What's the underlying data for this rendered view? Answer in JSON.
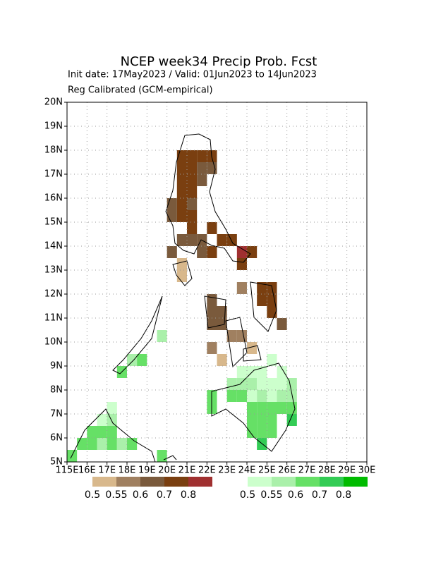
{
  "chart_data": {
    "type": "grid-map",
    "title": "NCEP week34 Precip Prob. Fcst",
    "subtitle": "Init date: 17May2023 / Valid: 01Jun2023 to 14Jun2023",
    "note": "Reg Calibrated (GCM-empirical)",
    "xlim": [
      115,
      130
    ],
    "ylim": [
      5,
      20
    ],
    "xticks": [
      {
        "value": 115,
        "label": "115E"
      },
      {
        "value": 116,
        "label": "16E"
      },
      {
        "value": 117,
        "label": "17E"
      },
      {
        "value": 118,
        "label": "18E"
      },
      {
        "value": 119,
        "label": "19E"
      },
      {
        "value": 120,
        "label": "20E"
      },
      {
        "value": 121,
        "label": "21E"
      },
      {
        "value": 122,
        "label": "22E"
      },
      {
        "value": 123,
        "label": "23E"
      },
      {
        "value": 124,
        "label": "24E"
      },
      {
        "value": 125,
        "label": "25E"
      },
      {
        "value": 126,
        "label": "26E"
      },
      {
        "value": 127,
        "label": "27E"
      },
      {
        "value": 128,
        "label": "28E"
      },
      {
        "value": 129,
        "label": "29E"
      },
      {
        "value": 130,
        "label": "30E"
      }
    ],
    "yticks": [
      {
        "value": 5,
        "label": "5N"
      },
      {
        "value": 6,
        "label": "6N"
      },
      {
        "value": 7,
        "label": "7N"
      },
      {
        "value": 8,
        "label": "8N"
      },
      {
        "value": 9,
        "label": "9N"
      },
      {
        "value": 10,
        "label": "10N"
      },
      {
        "value": 11,
        "label": "11N"
      },
      {
        "value": 12,
        "label": "12N"
      },
      {
        "value": 13,
        "label": "13N"
      },
      {
        "value": 14,
        "label": "14N"
      },
      {
        "value": 15,
        "label": "15N"
      },
      {
        "value": 16,
        "label": "16N"
      },
      {
        "value": 17,
        "label": "17N"
      },
      {
        "value": 18,
        "label": "18N"
      },
      {
        "value": 19,
        "label": "19N"
      },
      {
        "value": 20,
        "label": "20N"
      }
    ],
    "grid": true,
    "cell_size": 0.5,
    "legends": [
      {
        "levels": [
          0.5,
          0.55,
          0.6,
          0.7,
          0.8
        ],
        "colors": [
          "#d8b88c",
          "#a08060",
          "#7a5a3c",
          "#7a3f10",
          "#a03030"
        ]
      },
      {
        "levels": [
          0.5,
          0.55,
          0.6,
          0.7,
          0.8
        ],
        "colors": [
          "#ccffcc",
          "#aaf0aa",
          "#66e066",
          "#33cc55",
          "#00bb00"
        ]
      }
    ],
    "dry_cells": [
      {
        "lon": 120.5,
        "lat": 17.5,
        "p": 0.7
      },
      {
        "lon": 121,
        "lat": 17.5,
        "p": 0.7
      },
      {
        "lon": 121.5,
        "lat": 17.5,
        "p": 0.7
      },
      {
        "lon": 122,
        "lat": 17.5,
        "p": 0.7
      },
      {
        "lon": 120.5,
        "lat": 17,
        "p": 0.7
      },
      {
        "lon": 121,
        "lat": 17,
        "p": 0.7
      },
      {
        "lon": 121.5,
        "lat": 17,
        "p": 0.6
      },
      {
        "lon": 122,
        "lat": 17,
        "p": 0.6
      },
      {
        "lon": 120.5,
        "lat": 16.5,
        "p": 0.7
      },
      {
        "lon": 121,
        "lat": 16.5,
        "p": 0.7
      },
      {
        "lon": 121.5,
        "lat": 16.5,
        "p": 0.6
      },
      {
        "lon": 120.5,
        "lat": 16,
        "p": 0.7
      },
      {
        "lon": 121,
        "lat": 16,
        "p": 0.7
      },
      {
        "lon": 120,
        "lat": 15.5,
        "p": 0.6
      },
      {
        "lon": 120.5,
        "lat": 15.5,
        "p": 0.7
      },
      {
        "lon": 121,
        "lat": 15.5,
        "p": 0.6
      },
      {
        "lon": 120,
        "lat": 15,
        "p": 0.6
      },
      {
        "lon": 120.5,
        "lat": 15,
        "p": 0.7
      },
      {
        "lon": 121,
        "lat": 15,
        "p": 0.7
      },
      {
        "lon": 121,
        "lat": 14.5,
        "p": 0.7
      },
      {
        "lon": 122,
        "lat": 14.5,
        "p": 0.7
      },
      {
        "lon": 120.5,
        "lat": 14,
        "p": 0.6
      },
      {
        "lon": 121,
        "lat": 14,
        "p": 0.6
      },
      {
        "lon": 121.5,
        "lat": 14,
        "p": 0.6
      },
      {
        "lon": 122.5,
        "lat": 14,
        "p": 0.7
      },
      {
        "lon": 123,
        "lat": 14,
        "p": 0.7
      },
      {
        "lon": 120,
        "lat": 13.5,
        "p": 0.6
      },
      {
        "lon": 121.5,
        "lat": 13.5,
        "p": 0.6
      },
      {
        "lon": 122,
        "lat": 13.5,
        "p": 0.7
      },
      {
        "lon": 123.5,
        "lat": 13.5,
        "p": 0.8
      },
      {
        "lon": 124,
        "lat": 13.5,
        "p": 0.7
      },
      {
        "lon": 120.5,
        "lat": 13,
        "p": 0.5
      },
      {
        "lon": 123.5,
        "lat": 13,
        "p": 0.7
      },
      {
        "lon": 120.5,
        "lat": 12.5,
        "p": 0.5
      },
      {
        "lon": 123.5,
        "lat": 12,
        "p": 0.55
      },
      {
        "lon": 124.5,
        "lat": 12,
        "p": 0.7
      },
      {
        "lon": 125,
        "lat": 12,
        "p": 0.7
      },
      {
        "lon": 122,
        "lat": 11.5,
        "p": 0.6
      },
      {
        "lon": 124.5,
        "lat": 11.5,
        "p": 0.7
      },
      {
        "lon": 125,
        "lat": 11.5,
        "p": 0.7
      },
      {
        "lon": 122,
        "lat": 11,
        "p": 0.6
      },
      {
        "lon": 122.5,
        "lat": 11,
        "p": 0.6
      },
      {
        "lon": 125,
        "lat": 11,
        "p": 0.7
      },
      {
        "lon": 122,
        "lat": 10.5,
        "p": 0.6
      },
      {
        "lon": 122.5,
        "lat": 10.5,
        "p": 0.6
      },
      {
        "lon": 125.5,
        "lat": 10.5,
        "p": 0.6
      },
      {
        "lon": 123,
        "lat": 10,
        "p": 0.55
      },
      {
        "lon": 123.5,
        "lat": 10,
        "p": 0.55
      },
      {
        "lon": 122,
        "lat": 9.5,
        "p": 0.55
      },
      {
        "lon": 124,
        "lat": 9.5,
        "p": 0.5
      },
      {
        "lon": 122.5,
        "lat": 9,
        "p": 0.5
      }
    ],
    "wet_cells": [
      {
        "lon": 125,
        "lat": 9,
        "p": 0.5
      },
      {
        "lon": 123.5,
        "lat": 8.5,
        "p": 0.5
      },
      {
        "lon": 124,
        "lat": 8.5,
        "p": 0.5
      },
      {
        "lon": 124.5,
        "lat": 8.5,
        "p": 0.5
      },
      {
        "lon": 125.5,
        "lat": 8.5,
        "p": 0.5
      },
      {
        "lon": 123,
        "lat": 8,
        "p": 0.55
      },
      {
        "lon": 123.5,
        "lat": 8,
        "p": 0.55
      },
      {
        "lon": 124,
        "lat": 8,
        "p": 0.55
      },
      {
        "lon": 124.5,
        "lat": 8,
        "p": 0.5
      },
      {
        "lon": 125,
        "lat": 8,
        "p": 0.5
      },
      {
        "lon": 125.5,
        "lat": 8,
        "p": 0.5
      },
      {
        "lon": 126,
        "lat": 8,
        "p": 0.55
      },
      {
        "lon": 122,
        "lat": 7.5,
        "p": 0.6
      },
      {
        "lon": 123,
        "lat": 7.5,
        "p": 0.6
      },
      {
        "lon": 123.5,
        "lat": 7.5,
        "p": 0.6
      },
      {
        "lon": 124,
        "lat": 7.5,
        "p": 0.5
      },
      {
        "lon": 124.5,
        "lat": 7.5,
        "p": 0.55
      },
      {
        "lon": 125,
        "lat": 7.5,
        "p": 0.5
      },
      {
        "lon": 125.5,
        "lat": 7.5,
        "p": 0.55
      },
      {
        "lon": 126,
        "lat": 7.5,
        "p": 0.55
      },
      {
        "lon": 122,
        "lat": 7,
        "p": 0.6
      },
      {
        "lon": 124,
        "lat": 7,
        "p": 0.6
      },
      {
        "lon": 124.5,
        "lat": 7,
        "p": 0.6
      },
      {
        "lon": 125,
        "lat": 7,
        "p": 0.6
      },
      {
        "lon": 125.5,
        "lat": 7,
        "p": 0.6
      },
      {
        "lon": 126,
        "lat": 7,
        "p": 0.6
      },
      {
        "lon": 124,
        "lat": 6.5,
        "p": 0.6
      },
      {
        "lon": 124.5,
        "lat": 6.5,
        "p": 0.6
      },
      {
        "lon": 125,
        "lat": 6.5,
        "p": 0.6
      },
      {
        "lon": 126,
        "lat": 6.5,
        "p": 0.7
      },
      {
        "lon": 124,
        "lat": 6,
        "p": 0.6
      },
      {
        "lon": 124.5,
        "lat": 6,
        "p": 0.6
      },
      {
        "lon": 125,
        "lat": 6,
        "p": 0.6
      },
      {
        "lon": 124.5,
        "lat": 5.5,
        "p": 0.7
      },
      {
        "lon": 117,
        "lat": 7,
        "p": 0.5
      },
      {
        "lon": 116.5,
        "lat": 6.5,
        "p": 0.5
      },
      {
        "lon": 117,
        "lat": 6.5,
        "p": 0.55
      },
      {
        "lon": 116,
        "lat": 6,
        "p": 0.6
      },
      {
        "lon": 116.5,
        "lat": 6,
        "p": 0.6
      },
      {
        "lon": 117,
        "lat": 6,
        "p": 0.6
      },
      {
        "lon": 115.5,
        "lat": 5.5,
        "p": 0.6
      },
      {
        "lon": 116,
        "lat": 5.5,
        "p": 0.6
      },
      {
        "lon": 116.5,
        "lat": 5.5,
        "p": 0.55
      },
      {
        "lon": 117,
        "lat": 5.5,
        "p": 0.6
      },
      {
        "lon": 117.5,
        "lat": 5.5,
        "p": 0.55
      },
      {
        "lon": 118,
        "lat": 5.5,
        "p": 0.6
      },
      {
        "lon": 115,
        "lat": 5,
        "p": 0.6
      },
      {
        "lon": 119.5,
        "lat": 5,
        "p": 0.6
      },
      {
        "lon": 117.5,
        "lat": 8.5,
        "p": 0.6
      },
      {
        "lon": 118,
        "lat": 9,
        "p": 0.55
      },
      {
        "lon": 118.5,
        "lat": 9,
        "p": 0.6
      },
      {
        "lon": 119.5,
        "lat": 10,
        "p": 0.55
      }
    ]
  }
}
